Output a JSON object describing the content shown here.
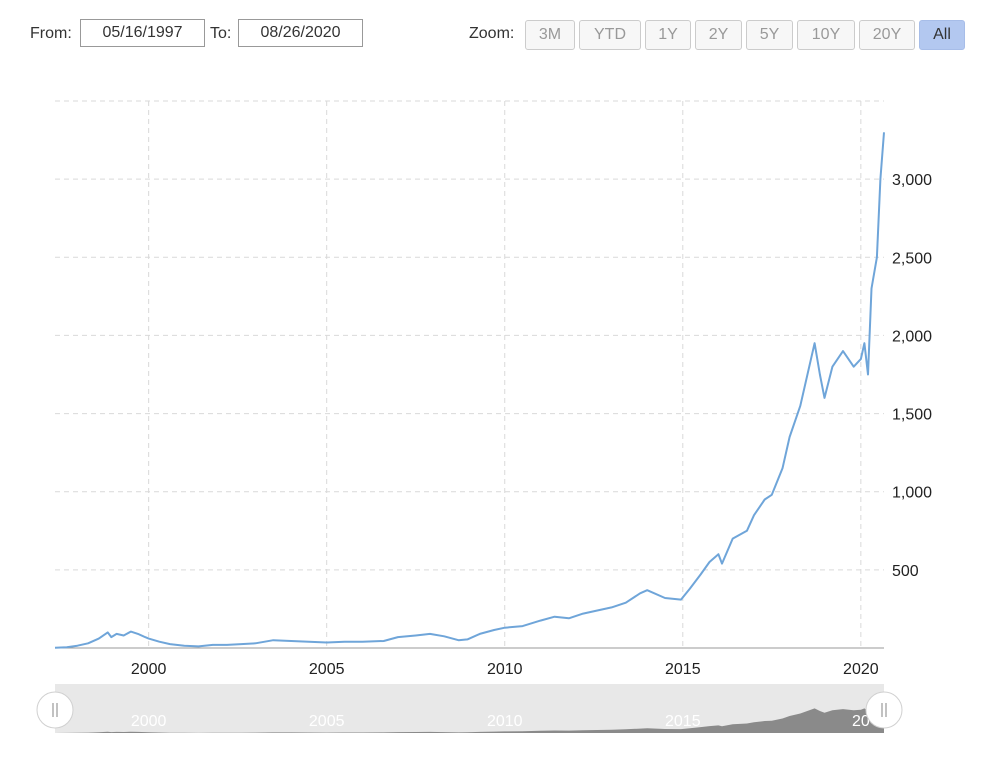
{
  "range_selector": {
    "from_label": "From:",
    "from_value": "05/16/1997",
    "to_label": "To:",
    "to_value": "08/26/2020",
    "zoom_label": "Zoom:",
    "buttons": [
      "3M",
      "YTD",
      "1Y",
      "2Y",
      "5Y",
      "10Y",
      "20Y",
      "All"
    ],
    "active_button": "All"
  },
  "colors": {
    "line": "#6fa5d9",
    "grid": "#d9d9d9",
    "active_button": "#b3c8f0",
    "navigator_bg": "#e8e8e8",
    "navigator_area": "#8a8a8a"
  },
  "navigator": {
    "labels": [
      "2000",
      "2005",
      "2010",
      "2015",
      "20"
    ],
    "left_handle_icon": "grip-icon",
    "right_handle_icon": "grip-icon"
  },
  "chart_data": {
    "type": "line",
    "title": "",
    "xlabel": "",
    "ylabel": "",
    "x_axis_type": "year",
    "xlim": [
      1997.37,
      2020.65
    ],
    "ylim": [
      0,
      3500
    ],
    "grid": true,
    "y_ticks": [
      500,
      1000,
      1500,
      2000,
      2500,
      3000
    ],
    "y_tick_labels": [
      "500",
      "1,000",
      "1,500",
      "2,000",
      "2,500",
      "3,000"
    ],
    "x_ticks": [
      2000,
      2005,
      2010,
      2015,
      2020
    ],
    "x_tick_labels": [
      "2000",
      "2005",
      "2010",
      "2015",
      "2020"
    ],
    "series": [
      {
        "name": "",
        "x": [
          1997.37,
          1997.7,
          1998.0,
          1998.3,
          1998.6,
          1998.85,
          1998.95,
          1999.1,
          1999.3,
          1999.5,
          1999.7,
          1999.9,
          2000.0,
          2000.3,
          2000.6,
          2001.0,
          2001.4,
          2001.8,
          2002.2,
          2002.6,
          2003.0,
          2003.5,
          2004.0,
          2004.5,
          2005.0,
          2005.5,
          2006.0,
          2006.6,
          2007.0,
          2007.5,
          2007.9,
          2008.3,
          2008.7,
          2008.95,
          2009.3,
          2009.7,
          2010.0,
          2010.5,
          2011.0,
          2011.4,
          2011.8,
          2012.2,
          2012.6,
          2013.0,
          2013.4,
          2013.8,
          2014.0,
          2014.5,
          2014.95,
          2015.2,
          2015.5,
          2015.75,
          2016.0,
          2016.1,
          2016.4,
          2016.8,
          2017.0,
          2017.3,
          2017.5,
          2017.8,
          2018.0,
          2018.3,
          2018.7,
          2018.85,
          2018.98,
          2019.2,
          2019.5,
          2019.8,
          2020.0,
          2020.1,
          2020.2,
          2020.3,
          2020.45,
          2020.55,
          2020.65
        ],
        "y": [
          2,
          5,
          15,
          30,
          60,
          100,
          70,
          90,
          80,
          105,
          90,
          70,
          60,
          40,
          25,
          15,
          10,
          20,
          20,
          25,
          30,
          50,
          45,
          40,
          35,
          40,
          40,
          45,
          70,
          80,
          90,
          75,
          50,
          55,
          90,
          115,
          130,
          140,
          175,
          200,
          190,
          220,
          240,
          260,
          290,
          350,
          370,
          320,
          310,
          380,
          470,
          550,
          600,
          540,
          700,
          750,
          850,
          950,
          980,
          1150,
          1350,
          1550,
          1950,
          1750,
          1600,
          1800,
          1900,
          1800,
          1850,
          1950,
          1750,
          2300,
          2500,
          3000,
          3300
        ]
      }
    ]
  }
}
